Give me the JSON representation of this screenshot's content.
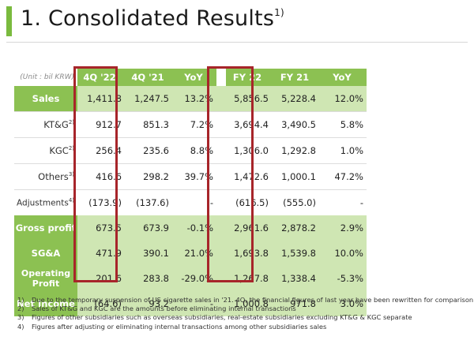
{
  "title": {
    "text": "1. Consolidated Results",
    "sup": "1)"
  },
  "unit": "(Unit : bil KRW)",
  "columns": [
    "4Q '22",
    "4Q '21",
    "YoY",
    "FY 22",
    "FY 21",
    "YoY"
  ],
  "rows": [
    {
      "label": "Sales",
      "sup": "",
      "cells": [
        "1,411.8",
        "1,247.5",
        "13.2%",
        "5,856.5",
        "5,228.4",
        "12.0%"
      ]
    },
    {
      "label": "KT&G",
      "sup": "2)",
      "cells": [
        "912.7",
        "851.3",
        "7.2%",
        "3,694.4",
        "3,490.5",
        "5.8%"
      ]
    },
    {
      "label": "KGC",
      "sup": "2)",
      "cells": [
        "256.4",
        "235.6",
        "8.8%",
        "1,306.0",
        "1,292.8",
        "1.0%"
      ]
    },
    {
      "label": "Others",
      "sup": "3)",
      "cells": [
        "416.6",
        "298.2",
        "39.7%",
        "1,472.6",
        "1,000.1",
        "47.2%"
      ]
    },
    {
      "label": "Adjustments",
      "sup": "4)",
      "cells": [
        "(173.9)",
        "(137.6)",
        "-",
        "(616.5)",
        "(555.0)",
        "-"
      ]
    },
    {
      "label": "Gross profit",
      "sup": "",
      "cells": [
        "673.5",
        "673.9",
        "-0.1%",
        "2,961.6",
        "2,878.2",
        "2.9%"
      ]
    },
    {
      "label": "SG&A",
      "sup": "",
      "cells": [
        "471.9",
        "390.1",
        "21.0%",
        "1,693.8",
        "1,539.8",
        "10.0%"
      ]
    },
    {
      "label": "Operating Profit",
      "sup": "",
      "cells": [
        "201.6",
        "283.8",
        "-29.0%",
        "1,267.8",
        "1,338.4",
        "-5.3%"
      ]
    },
    {
      "label": "Net Income",
      "sup": "",
      "cells": [
        "(64.6)",
        "93.2",
        "-",
        "1,000.8",
        "971.8",
        "3.0%"
      ]
    }
  ],
  "notes": [
    {
      "num": "1)",
      "text": "Due to the temporary suspension of US cigarette sales in '21. 4Q, the financial figures of last year have been rewritten for comparison"
    },
    {
      "num": "2)",
      "text": "Sales of KT&G and KGC are the amounts before eliminating internal transactions"
    },
    {
      "num": "3)",
      "text": "Figures of other subsidiaries such as overseas subsidiaries, real-estate subsidiaries excluding KT&G & KGC separate"
    },
    {
      "num": "4)",
      "text": "Figures after adjusting or eliminating internal transactions among other subsidiaries sales"
    }
  ],
  "colors": {
    "accent": "#8cc152",
    "highlight_fill": "#cfe6b3",
    "box": "#a7252a"
  }
}
